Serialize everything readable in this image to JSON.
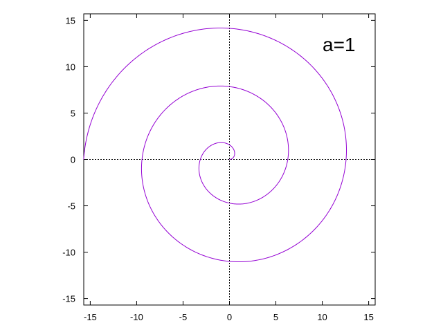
{
  "chart_data": {
    "type": "line",
    "title": "",
    "xlabel": "",
    "ylabel": "",
    "xlim": [
      -15.7,
      15.7
    ],
    "ylim": [
      -15.7,
      15.7
    ],
    "xticks": [
      "-15",
      "-10",
      "-5",
      "0",
      "5",
      "10",
      "15"
    ],
    "yticks": [
      "15",
      "10",
      "5",
      "0",
      "-5",
      "-10",
      "-15"
    ],
    "grid": false,
    "zero_axes": "dotted",
    "annotation": "a=1",
    "series": [
      {
        "curve": "Archimedean spiral r = a·θ",
        "a": 1,
        "theta_range": [
          0,
          15.708
        ],
        "color": "#9400d3"
      }
    ]
  }
}
